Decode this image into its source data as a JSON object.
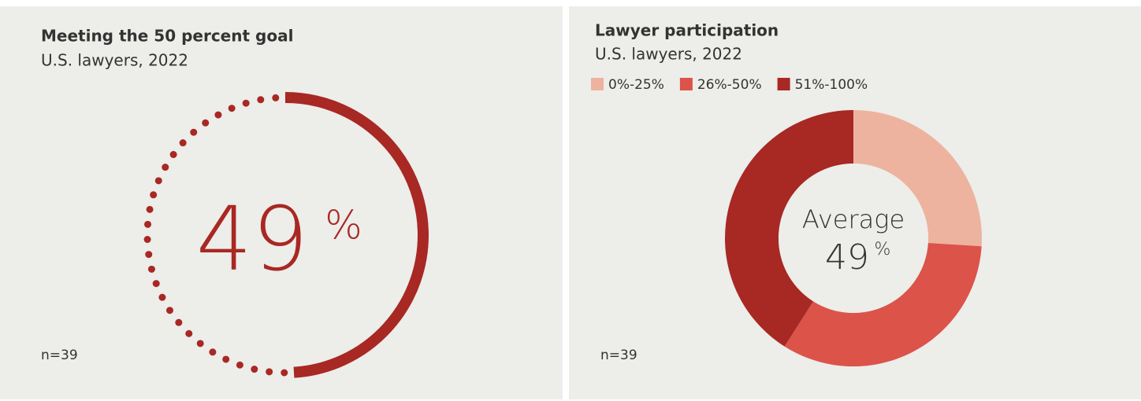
{
  "chart_data": [
    {
      "type": "gauge",
      "title": "Meeting the 50 percent goal",
      "subtitle": "U.S. lawyers, 2022",
      "value": 49,
      "unit": "%",
      "ylim": [
        0,
        100
      ],
      "color": "#a82823",
      "note": "n=39"
    },
    {
      "type": "pie",
      "title": "Lawyer participation",
      "subtitle": "U.S. lawyers, 2022",
      "categories": [
        "0%-25%",
        "26%-50%",
        "51%-100%"
      ],
      "values": [
        26,
        33,
        41
      ],
      "colors": [
        "#edb39f",
        "#dc5349",
        "#a82823"
      ],
      "legend": "top-left",
      "center_label": "Average",
      "center_value": 49,
      "center_unit": "%",
      "note": "n=39"
    }
  ]
}
